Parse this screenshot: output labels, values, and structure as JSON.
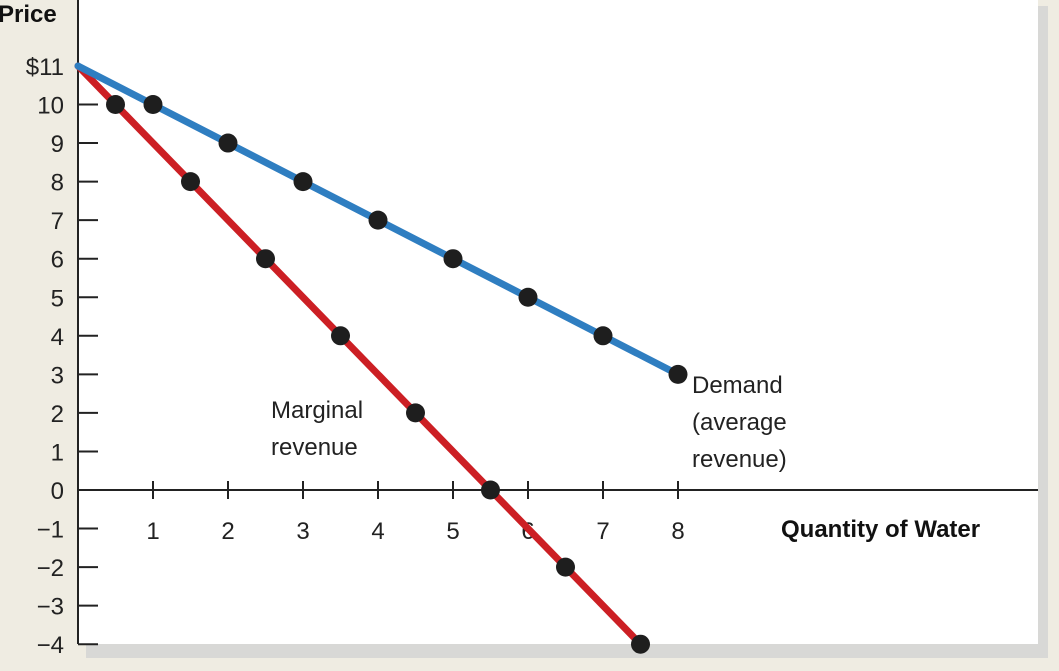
{
  "chart_data": {
    "type": "line",
    "ylabel": "Price",
    "xlabel": "Quantity of Water",
    "xlim": [
      0,
      8
    ],
    "ylim": [
      -4,
      11
    ],
    "x_ticks": [
      "1",
      "2",
      "3",
      "4",
      "5",
      "6",
      "7",
      "8"
    ],
    "y_ticks": [
      "$11",
      "10",
      "9",
      "8",
      "7",
      "6",
      "5",
      "4",
      "3",
      "2",
      "1",
      "0",
      "−1",
      "−2",
      "−3",
      "−4"
    ],
    "y_tick_values": [
      11,
      10,
      9,
      8,
      7,
      6,
      5,
      4,
      3,
      2,
      1,
      0,
      -1,
      -2,
      -3,
      -4
    ],
    "series": [
      {
        "name": "Demand (average revenue)",
        "label_lines": [
          "Demand",
          "(average",
          "revenue)"
        ],
        "color": "#2f7ec1",
        "line": [
          [
            0,
            11
          ],
          [
            8,
            3
          ]
        ],
        "points": [
          [
            1,
            10
          ],
          [
            2,
            9
          ],
          [
            3,
            8
          ],
          [
            4,
            7
          ],
          [
            5,
            6
          ],
          [
            6,
            5
          ],
          [
            7,
            4
          ],
          [
            8,
            3
          ]
        ]
      },
      {
        "name": "Marginal revenue",
        "label_lines": [
          "Marginal",
          "revenue"
        ],
        "color": "#cc1f24",
        "line": [
          [
            0,
            11
          ],
          [
            7.5,
            -4
          ]
        ],
        "points": [
          [
            0.5,
            10
          ],
          [
            1.5,
            8
          ],
          [
            2.5,
            6
          ],
          [
            3.5,
            4
          ],
          [
            4.5,
            2
          ],
          [
            5.5,
            0
          ],
          [
            6.5,
            -2
          ],
          [
            7.5,
            -4
          ]
        ]
      }
    ]
  }
}
